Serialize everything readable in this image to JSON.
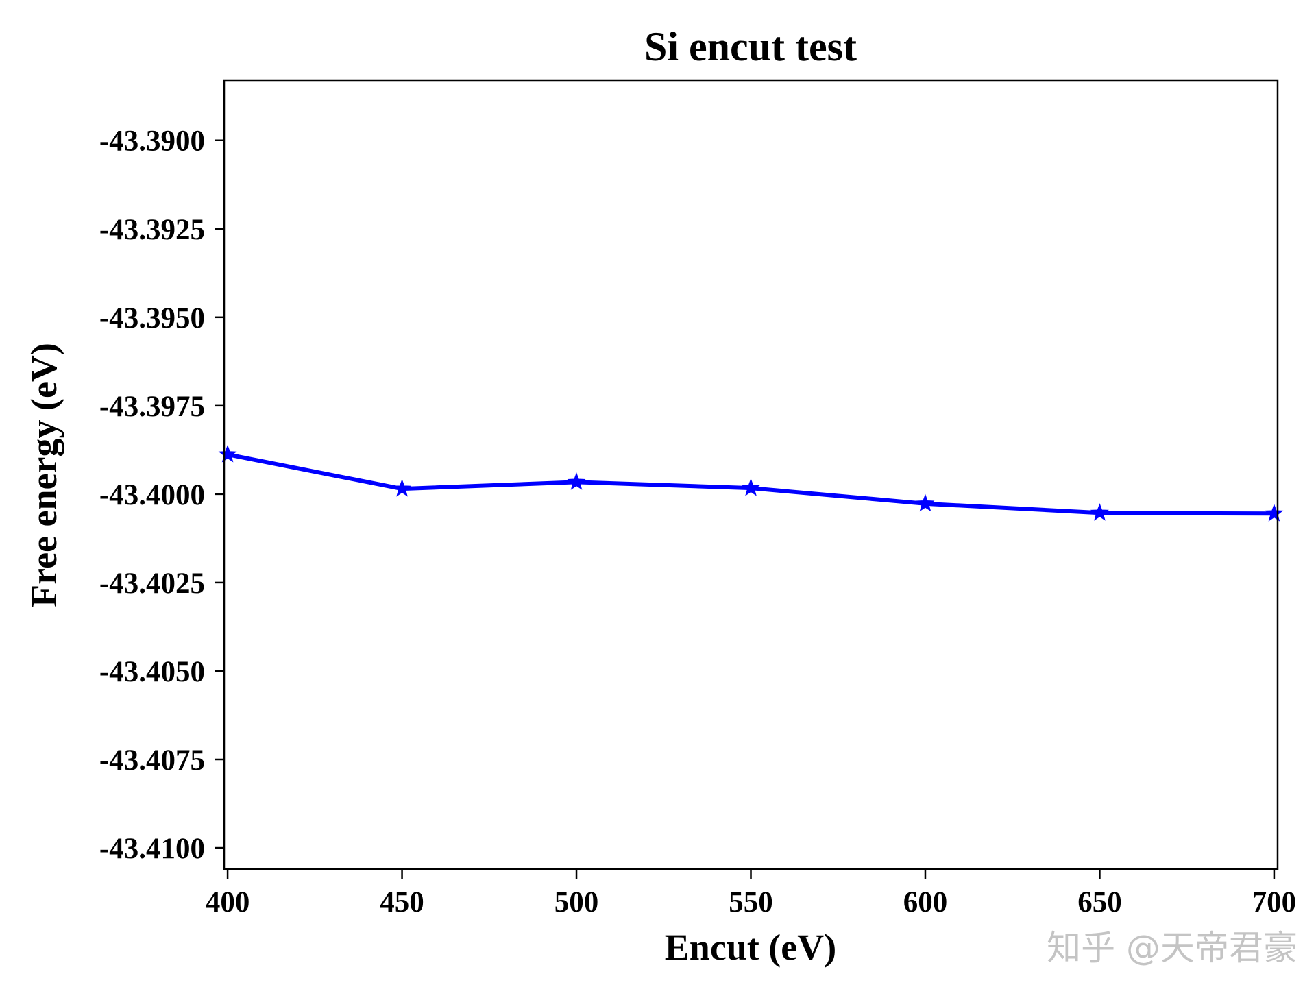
{
  "chart_data": {
    "type": "line",
    "title": "Si encut test",
    "xlabel": "Encut (eV)",
    "ylabel": "Free energy (eV)",
    "xlim": [
      399,
      701
    ],
    "ylim": [
      -43.4106,
      -43.3883
    ],
    "xticks": [
      400,
      450,
      500,
      550,
      600,
      650,
      700
    ],
    "xtick_labels": [
      "400",
      "450",
      "500",
      "550",
      "600",
      "650",
      "700"
    ],
    "yticks": [
      -43.39,
      -43.3925,
      -43.395,
      -43.3975,
      -43.4,
      -43.4025,
      -43.405,
      -43.4075,
      -43.41
    ],
    "ytick_labels": [
      "-43.3900",
      "-43.3925",
      "-43.3950",
      "-43.3975",
      "-43.4000",
      "-43.4025",
      "-43.4050",
      "-43.4075",
      "-43.4100"
    ],
    "grid": false,
    "series": [
      {
        "color": "#0000ff",
        "marker": "star",
        "x": [
          400,
          450,
          500,
          550,
          600,
          650,
          700
        ],
        "y": [
          -43.39888,
          -43.39985,
          -43.39966,
          -43.39983,
          -43.40027,
          -43.40053,
          -43.40055
        ]
      }
    ]
  },
  "watermark": "知乎 @天帝君豪"
}
